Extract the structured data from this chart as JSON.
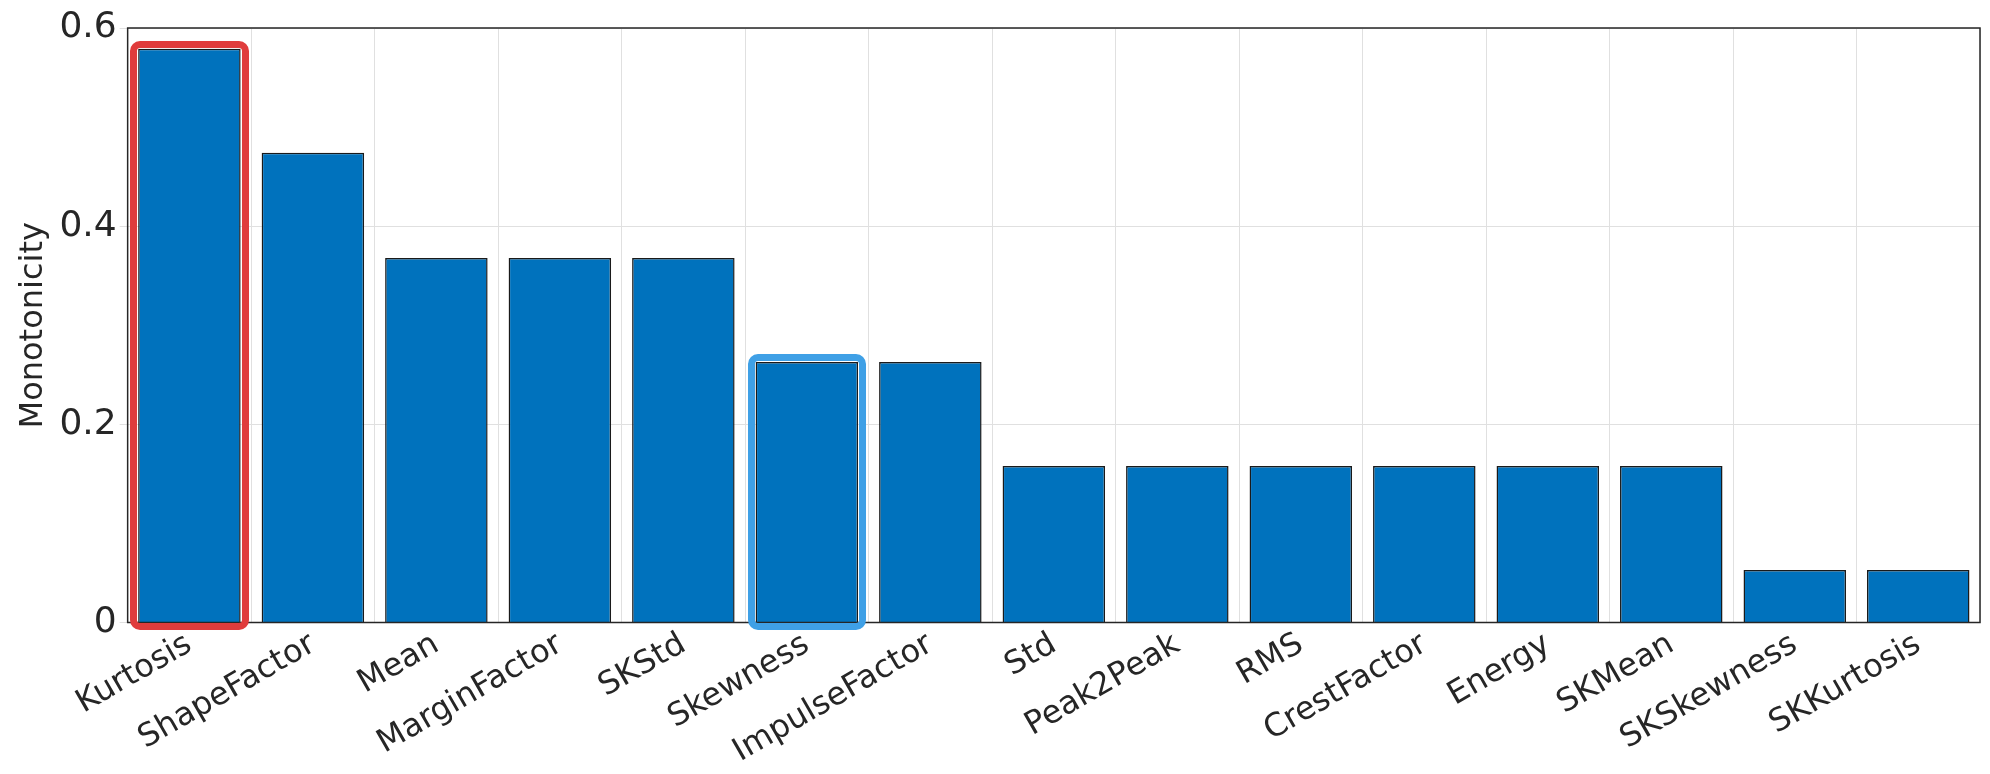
{
  "chart_data": {
    "type": "bar",
    "ylabel": "Monotonicity",
    "categories": [
      "Kurtosis",
      "ShapeFactor",
      "Mean",
      "MarginFactor",
      "SKStd",
      "Skewness",
      "ImpulseFactor",
      "Std",
      "Peak2Peak",
      "RMS",
      "CrestFactor",
      "Energy",
      "SKMean",
      "SKSkewness",
      "SKKurtosis"
    ],
    "values": [
      0.579,
      0.474,
      0.368,
      0.368,
      0.368,
      0.263,
      0.263,
      0.158,
      0.158,
      0.158,
      0.158,
      0.158,
      0.158,
      0.053,
      0.053
    ],
    "color": "#0072bd",
    "ylim": [
      0,
      0.6
    ],
    "yticks": [
      0,
      0.2,
      0.4,
      0.6
    ],
    "grid": true
  }
}
